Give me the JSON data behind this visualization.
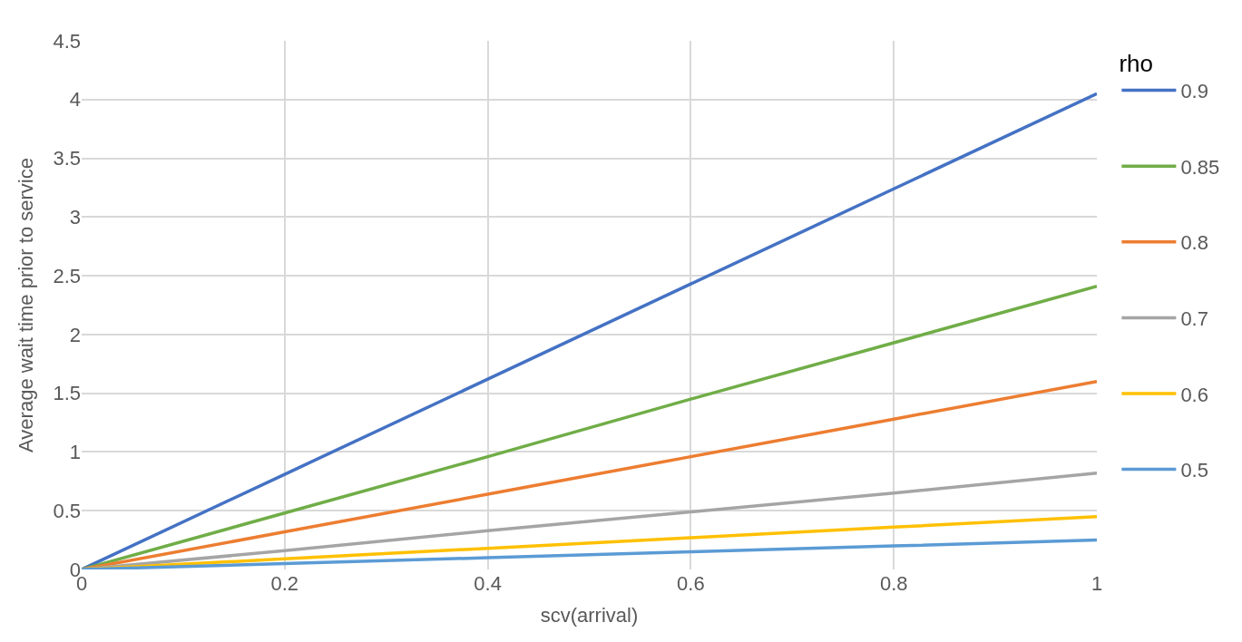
{
  "chart_data": {
    "type": "line",
    "xlabel": "scv(arrival)",
    "ylabel": "Average wait time prior to service",
    "legend_title": "rho",
    "x": [
      0,
      0.2,
      0.4,
      0.6,
      0.8,
      1
    ],
    "series": [
      {
        "name": "0.9",
        "color": "#4472c4",
        "values": [
          0,
          0.81,
          1.62,
          2.43,
          3.24,
          4.05
        ]
      },
      {
        "name": "0.85",
        "color": "#70ad47",
        "values": [
          0,
          0.48,
          0.96,
          1.45,
          1.93,
          2.41
        ]
      },
      {
        "name": "0.8",
        "color": "#ed7d31",
        "values": [
          0,
          0.32,
          0.64,
          0.96,
          1.28,
          1.6
        ]
      },
      {
        "name": "0.7",
        "color": "#a5a5a5",
        "values": [
          0,
          0.16,
          0.33,
          0.49,
          0.65,
          0.82
        ]
      },
      {
        "name": "0.6",
        "color": "#ffc000",
        "values": [
          0,
          0.09,
          0.18,
          0.27,
          0.36,
          0.45
        ]
      },
      {
        "name": "0.5",
        "color": "#5b9bd5",
        "values": [
          0,
          0.05,
          0.1,
          0.15,
          0.2,
          0.25
        ]
      }
    ],
    "xlim": [
      0,
      1
    ],
    "xticks": [
      0,
      0.2,
      0.4,
      0.6,
      0.8,
      1
    ],
    "ylim": [
      0,
      4.5
    ],
    "yticks": [
      0,
      0.5,
      1,
      1.5,
      2,
      2.5,
      3,
      3.5,
      4,
      4.5
    ],
    "grid": true,
    "legend": "right",
    "marker": "none",
    "line_style": "solid"
  }
}
